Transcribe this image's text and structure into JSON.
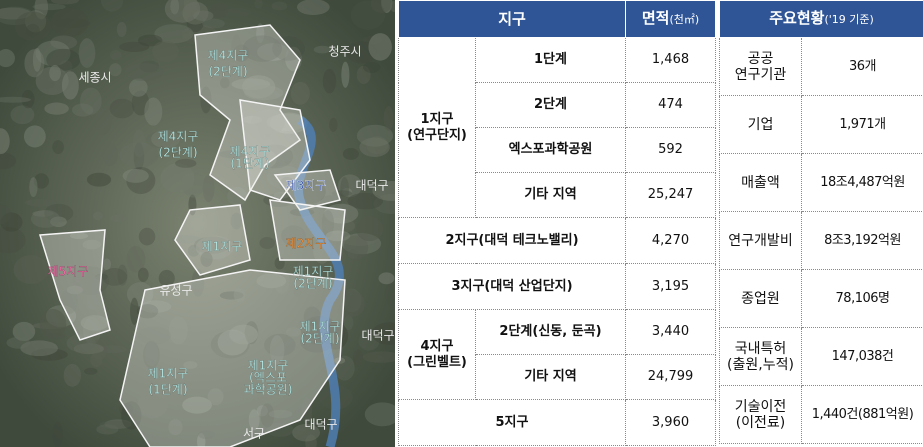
{
  "map": {
    "labels": [
      {
        "lines": [
          "세종시"
        ],
        "kind": "city"
      },
      {
        "lines": [
          "청주시"
        ],
        "kind": "city"
      },
      {
        "lines": [
          "제4지구",
          "(2단계)"
        ],
        "kind": "zone"
      },
      {
        "lines": [
          "제4지구",
          "(2단계)"
        ],
        "kind": "zone"
      },
      {
        "lines": [
          "제4지구",
          "(1단계)"
        ],
        "kind": "small"
      },
      {
        "lines": [
          "제3지구"
        ],
        "kind": "zone3"
      },
      {
        "lines": [
          "대덕구"
        ],
        "kind": "city"
      },
      {
        "lines": [
          "제1지구"
        ],
        "kind": "zone"
      },
      {
        "lines": [
          "제2지구"
        ],
        "kind": "zone2"
      },
      {
        "lines": [
          "제1지구",
          "(2단계)"
        ],
        "kind": "small"
      },
      {
        "lines": [
          "제5지구"
        ],
        "kind": "zone5"
      },
      {
        "lines": [
          "유성구"
        ],
        "kind": "city"
      },
      {
        "lines": [
          "제1지구",
          "(2단계)"
        ],
        "kind": "small"
      },
      {
        "lines": [
          "대덕구"
        ],
        "kind": "city"
      },
      {
        "lines": [
          "제1지구",
          "(1단계)"
        ],
        "kind": "zone"
      },
      {
        "lines": [
          "제1지구",
          "(엑스포",
          "과학공원)"
        ],
        "kind": "small"
      },
      {
        "lines": [
          "서구"
        ],
        "kind": "city"
      },
      {
        "lines": [
          "대덕구"
        ],
        "kind": "city"
      }
    ]
  },
  "table1": {
    "header": [
      "지구",
      "면적",
      "(천㎡)"
    ],
    "rows": [
      {
        "group": [
          "1지구",
          "(연구단지)"
        ],
        "sub": "1단계",
        "area": "1,468"
      },
      {
        "sub": "2단계",
        "area": "474"
      },
      {
        "sub": "엑스포과학공원",
        "area": "592"
      },
      {
        "sub": "기타 지역",
        "area": "25,247"
      },
      {
        "sub": "2지구(대덕 테크노밸리)",
        "area": "4,270"
      },
      {
        "sub": "3지구(대덕 산업단지)",
        "area": "3,195"
      },
      {
        "group": [
          "4지구",
          "(그린벨트)"
        ],
        "sub": "2단계(신동, 둔곡)",
        "area": "3,440"
      },
      {
        "sub": "기타 지역",
        "area": "24,799"
      },
      {
        "sub": "5지구",
        "area": "3,960"
      }
    ]
  },
  "table2": {
    "header": [
      "주요현황",
      "('19 기준)"
    ],
    "rows": [
      {
        "item": [
          "공공",
          "연구기관"
        ],
        "value": "36개"
      },
      {
        "item": [
          "기업"
        ],
        "value": "1,971개"
      },
      {
        "item": [
          "매출액"
        ],
        "value": "18조4,487억원"
      },
      {
        "item": [
          "연구개발비"
        ],
        "value": "8조3,192억원"
      },
      {
        "item": [
          "종업원"
        ],
        "value": "78,106명"
      },
      {
        "item": [
          "국내특허",
          "(출원,누적)"
        ],
        "value": "147,038건"
      },
      {
        "item": [
          "기술이전",
          "(이전료)"
        ],
        "value": "1,440건(881억원)"
      }
    ]
  }
}
